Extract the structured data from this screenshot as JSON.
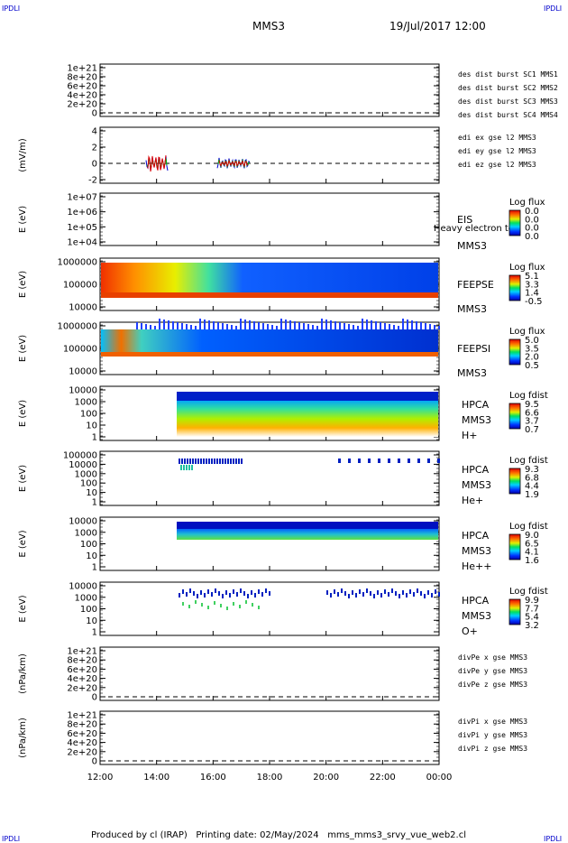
{
  "header": {
    "corner_label": "IPDLI",
    "title": "MMS3",
    "datetime": "19/Jul/2017 12:00"
  },
  "footer": "Produced by cl (IRAP)   Printing date: 02/May/2024   mms_mms3_srvy_vue_web2.cl",
  "colors": {
    "red": "#e00000",
    "magenta": "#e000e0",
    "green": "#00c000",
    "blue": "#0000cc"
  },
  "chart_data": {
    "type": "heatmap",
    "xlabel": "",
    "x_ticks": [
      "12:00",
      "14:00",
      "16:00",
      "18:00",
      "20:00",
      "22:00",
      "00:00"
    ],
    "panels": [
      {
        "id": "des-dist",
        "ylabel": "",
        "y_ticks": [
          "1e+21",
          "8e+20",
          "6e+20",
          "4e+20",
          "2e+20",
          "0"
        ],
        "legend": [
          {
            "text": "des dist burst SC1 MMS1",
            "color": "#0000cc"
          },
          {
            "text": "des dist burst SC2 MMS2",
            "color": "#e000e0"
          },
          {
            "text": "des dist burst SC3 MMS3",
            "color": "#e00000"
          },
          {
            "text": "des dist burst SC4 MMS4",
            "color": "#00c000"
          }
        ]
      },
      {
        "id": "edi",
        "ylabel": "(mV/m)",
        "y_ticks": [
          "4",
          "2",
          "0",
          "-2"
        ],
        "legend": [
          {
            "text": "edi ex gse l2 MMS3",
            "color": "#e00000"
          },
          {
            "text": "edi ey gse l2 MMS3",
            "color": "#00c000"
          },
          {
            "text": "edi ez gse l2 MMS3",
            "color": "#0000cc"
          }
        ]
      },
      {
        "id": "eis",
        "ylabel": "E (eV)",
        "y_ticks": [
          "1e+07",
          "1e+06",
          "1e+05",
          "1e+04"
        ],
        "labels": [
          "EIS",
          "MMS3"
        ],
        "overlay": "Heavy electron to",
        "colorbar": {
          "title": "Log flux",
          "ticks": [
            "0.0",
            "0.0",
            "0.0",
            "0.0"
          ]
        }
      },
      {
        "id": "feeps-e",
        "ylabel": "E (eV)",
        "y_ticks": [
          "1000000",
          "100000",
          "10000"
        ],
        "labels": [
          "FEEPSE",
          "MMS3"
        ],
        "colorbar": {
          "title": "Log flux",
          "ticks": [
            "5.1",
            "3.3",
            "1.4",
            "-0.5"
          ]
        }
      },
      {
        "id": "feeps-i",
        "ylabel": "E (eV)",
        "y_ticks": [
          "1000000",
          "100000",
          "10000"
        ],
        "labels": [
          "FEEPSI",
          "MMS3"
        ],
        "colorbar": {
          "title": "Log flux",
          "ticks": [
            "5.0",
            "3.5",
            "2.0",
            "0.5"
          ]
        }
      },
      {
        "id": "hpca-h",
        "ylabel": "E (eV)",
        "y_ticks": [
          "10000",
          "1000",
          "100",
          "10",
          "1"
        ],
        "labels": [
          "HPCA",
          "MMS3",
          "H+"
        ],
        "colorbar": {
          "title": "Log fdist",
          "ticks": [
            "9.5",
            "6.6",
            "3.7",
            "0.7"
          ]
        }
      },
      {
        "id": "hpca-he",
        "ylabel": "E (eV)",
        "y_ticks": [
          "100000",
          "10000",
          "1000",
          "100",
          "10",
          "1"
        ],
        "labels": [
          "HPCA",
          "MMS3",
          "He+"
        ],
        "colorbar": {
          "title": "Log fdist",
          "ticks": [
            "9.3",
            "6.8",
            "4.4",
            "1.9"
          ]
        }
      },
      {
        "id": "hpca-hepp",
        "ylabel": "E (eV)",
        "y_ticks": [
          "10000",
          "1000",
          "100",
          "10",
          "1"
        ],
        "labels": [
          "HPCA",
          "MMS3",
          "He++"
        ],
        "colorbar": {
          "title": "Log fdist",
          "ticks": [
            "9.0",
            "6.5",
            "4.1",
            "1.6"
          ]
        }
      },
      {
        "id": "hpca-o",
        "ylabel": "E (eV)",
        "y_ticks": [
          "10000",
          "1000",
          "100",
          "10",
          "1"
        ],
        "labels": [
          "HPCA",
          "MMS3",
          "O+"
        ],
        "colorbar": {
          "title": "Log fdist",
          "ticks": [
            "9.9",
            "7.7",
            "5.4",
            "3.2"
          ]
        }
      },
      {
        "id": "divpe",
        "ylabel": "(nPa/km)",
        "y_ticks": [
          "1e+21",
          "8e+20",
          "6e+20",
          "4e+20",
          "2e+20",
          "0"
        ],
        "legend": [
          {
            "text": "divPe x gse MMS3",
            "color": "#e00000"
          },
          {
            "text": "divPe y gse MMS3",
            "color": "#00c000"
          },
          {
            "text": "divPe z gse MMS3",
            "color": "#0000cc"
          }
        ]
      },
      {
        "id": "divpi",
        "ylabel": "(nPa/km)",
        "y_ticks": [
          "1e+21",
          "8e+20",
          "6e+20",
          "4e+20",
          "2e+20",
          "0"
        ],
        "legend": [
          {
            "text": "divPi x gse MMS3",
            "color": "#e00000"
          },
          {
            "text": "divPi y gse MMS3",
            "color": "#00c000"
          },
          {
            "text": "divPi z gse MMS3",
            "color": "#0000cc"
          }
        ]
      }
    ]
  }
}
